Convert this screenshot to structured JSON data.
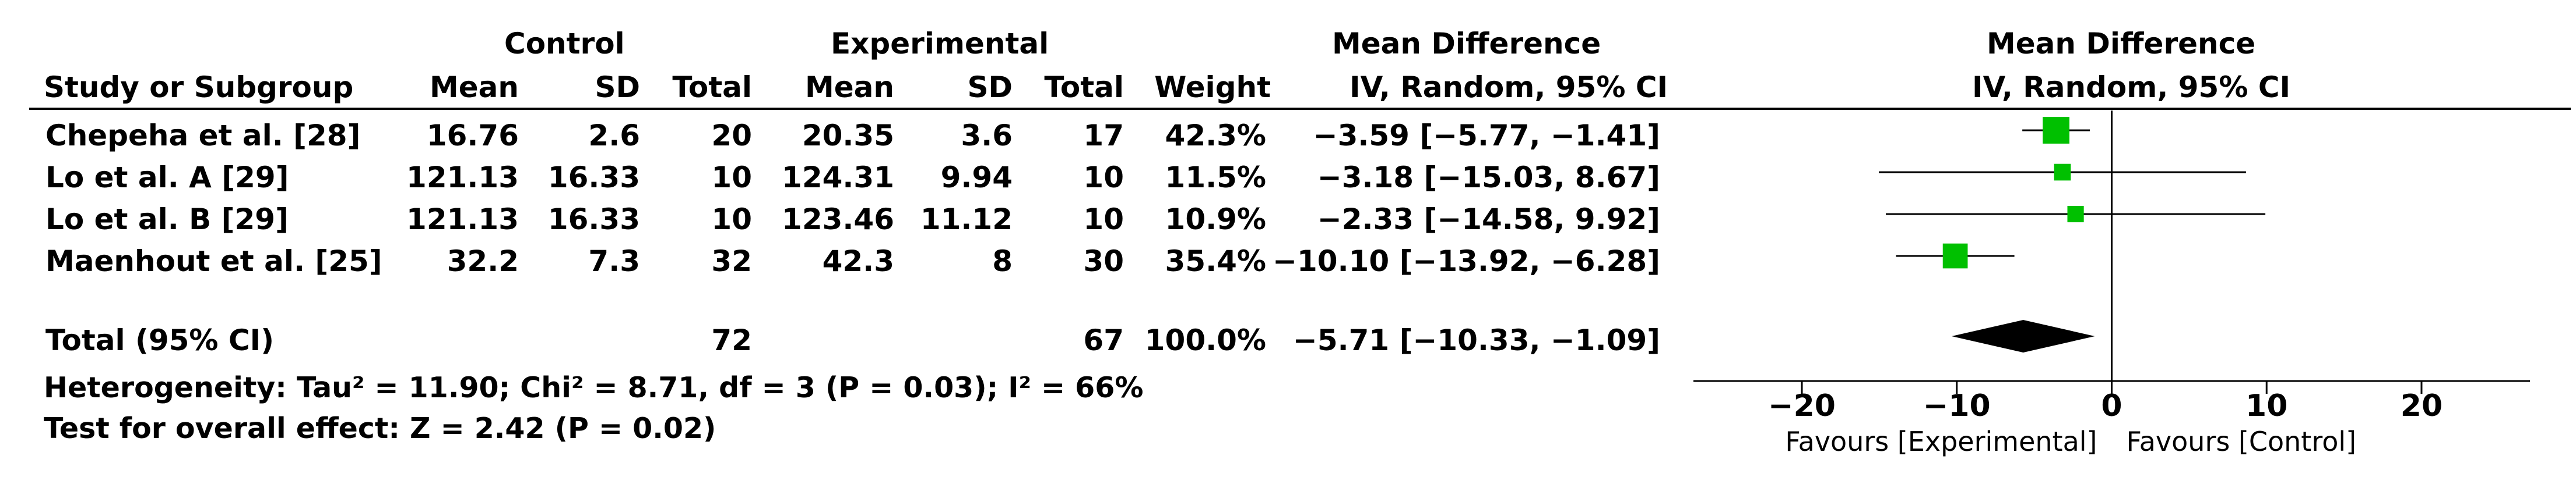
{
  "table": {
    "group_headers": {
      "control": "Control",
      "experimental": "Experimental",
      "mean_difference": "Mean Difference"
    },
    "columns": {
      "study": "Study or Subgroup",
      "c_mean": "Mean",
      "c_sd": "SD",
      "c_total": "Total",
      "e_mean": "Mean",
      "e_sd": "SD",
      "e_total": "Total",
      "weight": "Weight",
      "md": "IV, Random, 95% CI"
    },
    "rows": [
      {
        "study": "Chepeha et al. [28]",
        "c_mean": "16.76",
        "c_sd": "2.6",
        "c_total": "20",
        "e_mean": "20.35",
        "e_sd": "3.6",
        "e_total": "17",
        "weight": "42.3%",
        "md": "−3.59 [−5.77, −1.41]"
      },
      {
        "study": "Lo et al. A [29]",
        "c_mean": "121.13",
        "c_sd": "16.33",
        "c_total": "10",
        "e_mean": "124.31",
        "e_sd": "9.94",
        "e_total": "10",
        "weight": "11.5%",
        "md": "−3.18 [−15.03, 8.67]"
      },
      {
        "study": "Lo et al. B [29]",
        "c_mean": "121.13",
        "c_sd": "16.33",
        "c_total": "10",
        "e_mean": "123.46",
        "e_sd": "11.12",
        "e_total": "10",
        "weight": "10.9%",
        "md": "−2.33 [−14.58, 9.92]"
      },
      {
        "study": "Maenhout et al. [25]",
        "c_mean": "32.2",
        "c_sd": "7.3",
        "c_total": "32",
        "e_mean": "42.3",
        "e_sd": "8",
        "e_total": "30",
        "weight": "35.4%",
        "md": "−10.10 [−13.92, −6.28]"
      }
    ],
    "total": {
      "label": "Total (95% CI)",
      "c_total": "72",
      "e_total": "67",
      "weight": "100.0%",
      "md": "−5.71 [−10.33, −1.09]"
    },
    "heterogeneity": "Heterogeneity: Tau² = 11.90; Chi² = 8.71, df = 3 (P = 0.03); I² = 66%",
    "overall_effect": "Test for overall effect: Z = 2.42 (P = 0.02)"
  },
  "plot_header": {
    "title": "Mean Difference",
    "subtitle": "IV, Random, 95% CI"
  },
  "colors": {
    "marker": "#00c000",
    "diamond": "#000000",
    "line": "#000000"
  },
  "chart_data": {
    "type": "scatter",
    "title": "Mean Difference",
    "subtitle": "IV, Random, 95% CI",
    "xlim": [
      -27,
      27
    ],
    "x_ticks": [
      -20,
      -10,
      0,
      10,
      20
    ],
    "x_tick_labels": [
      "−20",
      "−10",
      "0",
      "10",
      "20"
    ],
    "favours_left": "Favours [Experimental]",
    "favours_right": "Favours [Control]",
    "studies": [
      {
        "name": "Chepeha et al. [28]",
        "md": -3.59,
        "lo": -5.77,
        "hi": -1.41,
        "weight": 42.3
      },
      {
        "name": "Lo et al. A [29]",
        "md": -3.18,
        "lo": -15.03,
        "hi": 8.67,
        "weight": 11.5
      },
      {
        "name": "Lo et al. B [29]",
        "md": -2.33,
        "lo": -14.58,
        "hi": 9.92,
        "weight": 10.9
      },
      {
        "name": "Maenhout et al. [25]",
        "md": -10.1,
        "lo": -13.92,
        "hi": -6.28,
        "weight": 35.4
      }
    ],
    "pooled": {
      "md": -5.71,
      "lo": -10.33,
      "hi": -1.09
    }
  }
}
